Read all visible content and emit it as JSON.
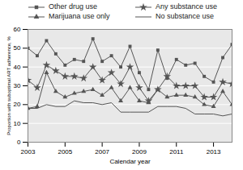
{
  "chart_data": {
    "type": "line",
    "x": [
      2003,
      2003.5,
      2004,
      2004.5,
      2005,
      2005.5,
      2006,
      2006.5,
      2007,
      2007.5,
      2008,
      2008.5,
      2009,
      2009.5,
      2010,
      2010.5,
      2011,
      2011.5,
      2012,
      2012.5,
      2013,
      2013.5,
      2014
    ],
    "series": [
      {
        "name": "Other drug use",
        "color": "#555555",
        "marker": "square",
        "values": [
          50,
          46,
          54,
          47,
          41,
          44,
          43,
          55,
          43,
          46,
          40,
          51,
          37,
          28,
          49,
          34,
          44,
          41,
          42,
          35,
          32,
          45,
          52
        ]
      },
      {
        "name": "Any substance use",
        "color": "#555555",
        "marker": "star",
        "values": [
          33,
          29,
          41,
          38,
          35,
          35,
          34,
          40,
          33,
          37,
          31,
          40,
          29,
          22,
          28,
          35,
          30,
          30,
          30,
          24,
          24,
          32,
          31
        ]
      },
      {
        "name": "Marijuana use only",
        "color": "#555555",
        "marker": "triangle",
        "values": [
          18,
          19,
          37,
          27,
          24,
          26,
          27,
          28,
          25,
          29,
          22,
          29,
          22,
          21,
          28,
          24,
          25,
          25,
          24,
          20,
          19,
          27,
          20
        ]
      },
      {
        "name": "No substance use",
        "color": "#555555",
        "marker": "none",
        "values": [
          18,
          18,
          20,
          19,
          19,
          22,
          21,
          21,
          20,
          21,
          16,
          16,
          16,
          16,
          19,
          19,
          19,
          18,
          15,
          15,
          15,
          14,
          15
        ]
      }
    ],
    "xlim": [
      2003,
      2014
    ],
    "ylim": [
      0,
      60
    ],
    "xticks": [
      2003,
      2005,
      2007,
      2009,
      2011,
      2013
    ],
    "yticks": [
      0,
      10,
      20,
      30,
      40,
      50,
      60
    ],
    "xlabel": "Calendar year",
    "ylabel": "Proportion with suboptimal ART adherence, %",
    "grid": true,
    "legend": "upper left"
  }
}
